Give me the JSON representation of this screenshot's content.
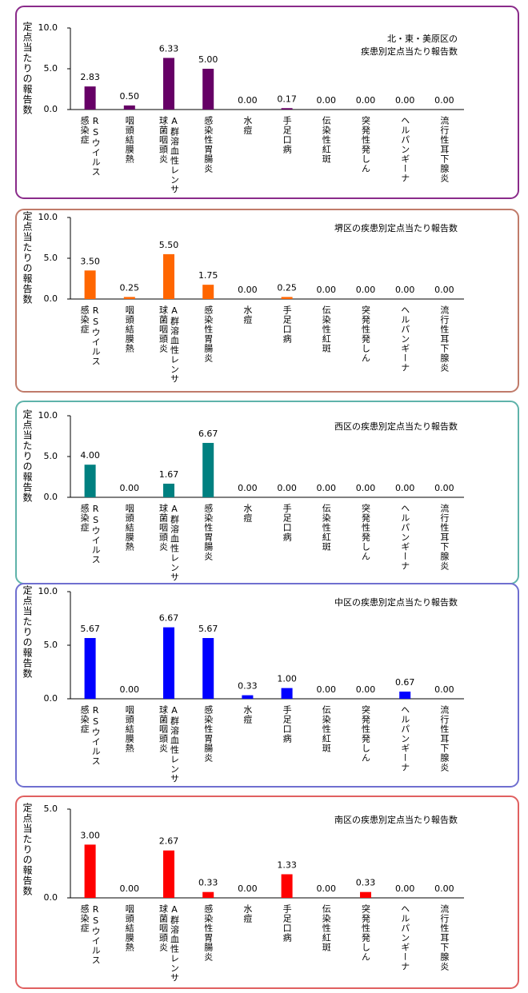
{
  "chart_data": [
    {
      "type": "bar",
      "title": [
        "北・東・美原区の",
        "疾患別定点当たり報告数"
      ],
      "y_label": "定点当たりの報告数",
      "color": "#660066",
      "categories": [
        [
          "RSウイルス",
          "感染症"
        ],
        [
          "咽頭結膜熱"
        ],
        [
          "A群溶血性レンサ",
          "球菌咽頭炎"
        ],
        [
          "感染性胃腸炎"
        ],
        [
          "水痘"
        ],
        [
          "手足口病"
        ],
        [
          "伝染性紅斑"
        ],
        [
          "突発性発しん"
        ],
        [
          "ヘルパンギーナ"
        ],
        [
          "流行性耳下腺炎"
        ]
      ],
      "values": [
        2.83,
        0.5,
        6.33,
        5.0,
        0,
        0.17,
        0,
        0,
        0,
        0
      ],
      "value_labels": [
        "2.83",
        "0.50",
        "6.33",
        "5.00",
        "0.00",
        "0.17",
        "0.00",
        "0.00",
        "0.00",
        "0.00"
      ],
      "ylim": [
        0,
        10
      ],
      "yticks": [
        {
          "value": 0,
          "label": "0.0"
        },
        {
          "value": 5,
          "label": "5.0"
        },
        {
          "value": 10,
          "label": "10.0"
        }
      ]
    },
    {
      "type": "bar",
      "title": [
        "堺区の疾患別定点当たり報告数"
      ],
      "y_label": "定点当たりの報告数",
      "color": "#ff6600",
      "categories": [
        [
          "RSウイルス",
          "感染症"
        ],
        [
          "咽頭結膜熱"
        ],
        [
          "A群溶血性レンサ",
          "球菌咽頭炎"
        ],
        [
          "感染性胃腸炎"
        ],
        [
          "水痘"
        ],
        [
          "手足口病"
        ],
        [
          "伝染性紅斑"
        ],
        [
          "突発性発しん"
        ],
        [
          "ヘルパンギーナ"
        ],
        [
          "流行性耳下腺炎"
        ]
      ],
      "values": [
        3.5,
        0.25,
        5.5,
        1.75,
        0,
        0.25,
        0,
        0,
        0,
        0
      ],
      "value_labels": [
        "3.50",
        "0.25",
        "5.50",
        "1.75",
        "0.00",
        "0.25",
        "0.00",
        "0.00",
        "0.00",
        "0.00"
      ],
      "ylim": [
        0,
        10
      ],
      "yticks": [
        {
          "value": 0,
          "label": "0.0"
        },
        {
          "value": 5,
          "label": "5.0"
        },
        {
          "value": 10,
          "label": "10.0"
        }
      ]
    },
    {
      "type": "bar",
      "title": [
        "西区の疾患別定点当たり報告数"
      ],
      "y_label": "定点当たりの報告数",
      "color": "#008080",
      "categories": [
        [
          "RSウイルス",
          "感染症"
        ],
        [
          "咽頭結膜熱"
        ],
        [
          "A群溶血性レンサ",
          "球菌咽頭炎"
        ],
        [
          "感染性胃腸炎"
        ],
        [
          "水痘"
        ],
        [
          "手足口病"
        ],
        [
          "伝染性紅斑"
        ],
        [
          "突発性発しん"
        ],
        [
          "ヘルパンギーナ"
        ],
        [
          "流行性耳下腺炎"
        ]
      ],
      "values": [
        4.0,
        0,
        1.67,
        6.67,
        0,
        0,
        0,
        0,
        0,
        0
      ],
      "value_labels": [
        "4.00",
        "0.00",
        "1.67",
        "6.67",
        "0.00",
        "0.00",
        "0.00",
        "0.00",
        "0.00",
        "0.00"
      ],
      "ylim": [
        0,
        10
      ],
      "yticks": [
        {
          "value": 0,
          "label": "0.0"
        },
        {
          "value": 5,
          "label": "5.0"
        },
        {
          "value": 10,
          "label": "10.0"
        }
      ]
    },
    {
      "type": "bar",
      "title": [
        "中区の疾患別定点当たり報告数"
      ],
      "y_label": "定点当たりの報告数",
      "color": "#0000ff",
      "categories": [
        [
          "RSウイルス",
          "感染症"
        ],
        [
          "咽頭結膜熱"
        ],
        [
          "A群溶血性レンサ",
          "球菌咽頭炎"
        ],
        [
          "感染性胃腸炎"
        ],
        [
          "水痘"
        ],
        [
          "手足口病"
        ],
        [
          "伝染性紅斑"
        ],
        [
          "突発性発しん"
        ],
        [
          "ヘルパンギーナ"
        ],
        [
          "流行性耳下腺炎"
        ]
      ],
      "values": [
        5.67,
        0,
        6.67,
        5.67,
        0.33,
        1.0,
        0,
        0,
        0.67,
        0
      ],
      "value_labels": [
        "5.67",
        "0.00",
        "6.67",
        "5.67",
        "0.33",
        "1.00",
        "0.00",
        "0.00",
        "0.67",
        "0.00"
      ],
      "ylim": [
        0,
        10
      ],
      "yticks": [
        {
          "value": 0,
          "label": "0.0"
        },
        {
          "value": 5,
          "label": "5.0"
        },
        {
          "value": 10,
          "label": "10.0"
        }
      ]
    },
    {
      "type": "bar",
      "title": [
        "南区の疾患別定点当たり報告数"
      ],
      "y_label": "定点当たりの報告数",
      "color": "#ff0000",
      "categories": [
        [
          "RSウイルス",
          "感染症"
        ],
        [
          "咽頭結膜熱"
        ],
        [
          "A群溶血性レンサ",
          "球菌咽頭炎"
        ],
        [
          "感染性胃腸炎"
        ],
        [
          "水痘"
        ],
        [
          "手足口病"
        ],
        [
          "伝染性紅斑"
        ],
        [
          "突発性発しん"
        ],
        [
          "ヘルパンギーナ"
        ],
        [
          "流行性耳下腺炎"
        ]
      ],
      "values": [
        3.0,
        0,
        2.67,
        0.33,
        0,
        1.33,
        0,
        0.33,
        0,
        0
      ],
      "value_labels": [
        "3.00",
        "0.00",
        "2.67",
        "0.33",
        "0.00",
        "1.33",
        "0.00",
        "0.33",
        "0.00",
        "0.00"
      ],
      "ylim": [
        0,
        5
      ],
      "yticks": [
        {
          "value": 0,
          "label": "0.0"
        },
        {
          "value": 5,
          "label": "5.0"
        }
      ]
    }
  ]
}
